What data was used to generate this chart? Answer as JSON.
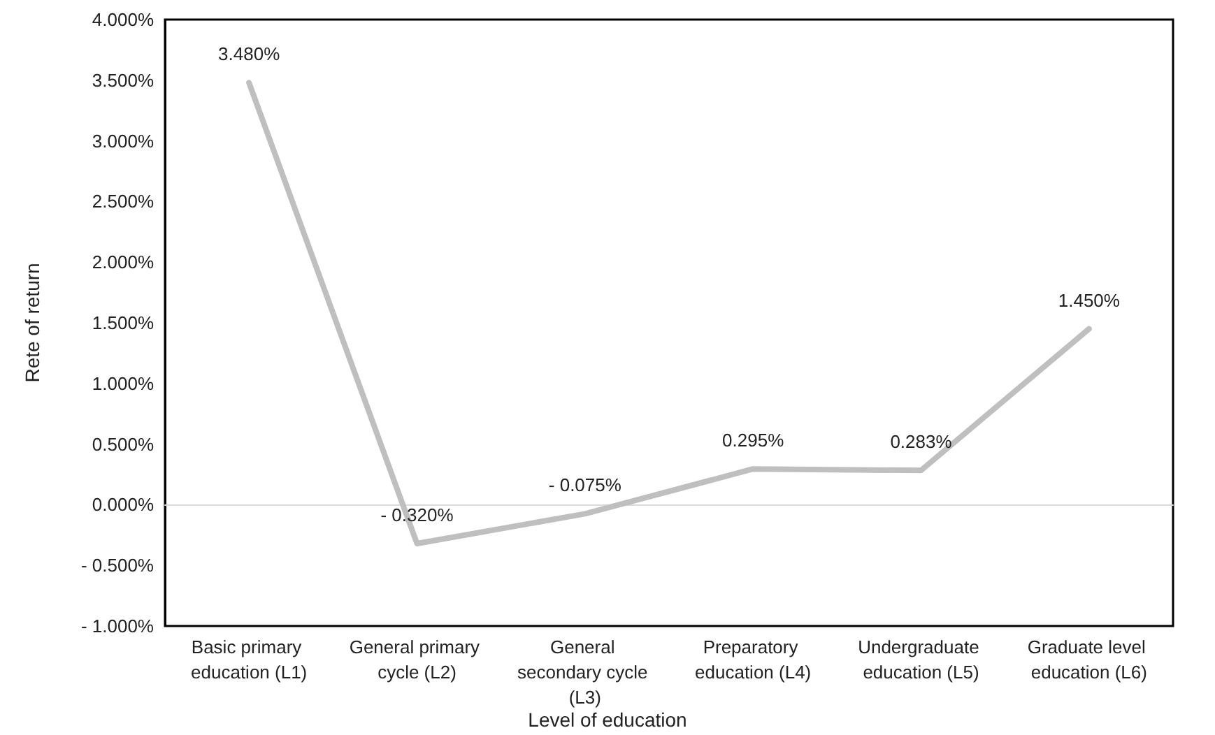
{
  "chart_data": {
    "type": "line",
    "xlabel": "Level of education",
    "ylabel": "Rete of return",
    "categories": [
      "Basic primary education (L1)",
      "General primary cycle (L2)",
      "General secondary cycle (L3)",
      "Preparatory education (L4)",
      "Undergraduate education (L5)",
      "Graduate level education (L6)"
    ],
    "series": [
      {
        "color": "#bfbfbf",
        "values": [
          3.48,
          -0.32,
          -0.075,
          0.295,
          0.283,
          1.45
        ],
        "value_labels": [
          "3.480%",
          "- 0.320%",
          "- 0.075%",
          "0.295%",
          "0.283%",
          "1.450%"
        ]
      }
    ],
    "ylim": [
      -1,
      4
    ],
    "yticks": [
      {
        "value": -1,
        "label": "- 1.000%"
      },
      {
        "value": -0.5,
        "label": "- 0.500%"
      },
      {
        "value": 0,
        "label": "0.000%"
      },
      {
        "value": 0.5,
        "label": "0.500%"
      },
      {
        "value": 1,
        "label": "1.000%"
      },
      {
        "value": 1.5,
        "label": "1.500%"
      },
      {
        "value": 2,
        "label": "2.000%"
      },
      {
        "value": 2.5,
        "label": "2.500%"
      },
      {
        "value": 3,
        "label": "3.000%"
      },
      {
        "value": 3.5,
        "label": "3.500%"
      },
      {
        "value": 4,
        "label": "4.000%"
      }
    ],
    "marker": "none",
    "line_style": "solid"
  }
}
